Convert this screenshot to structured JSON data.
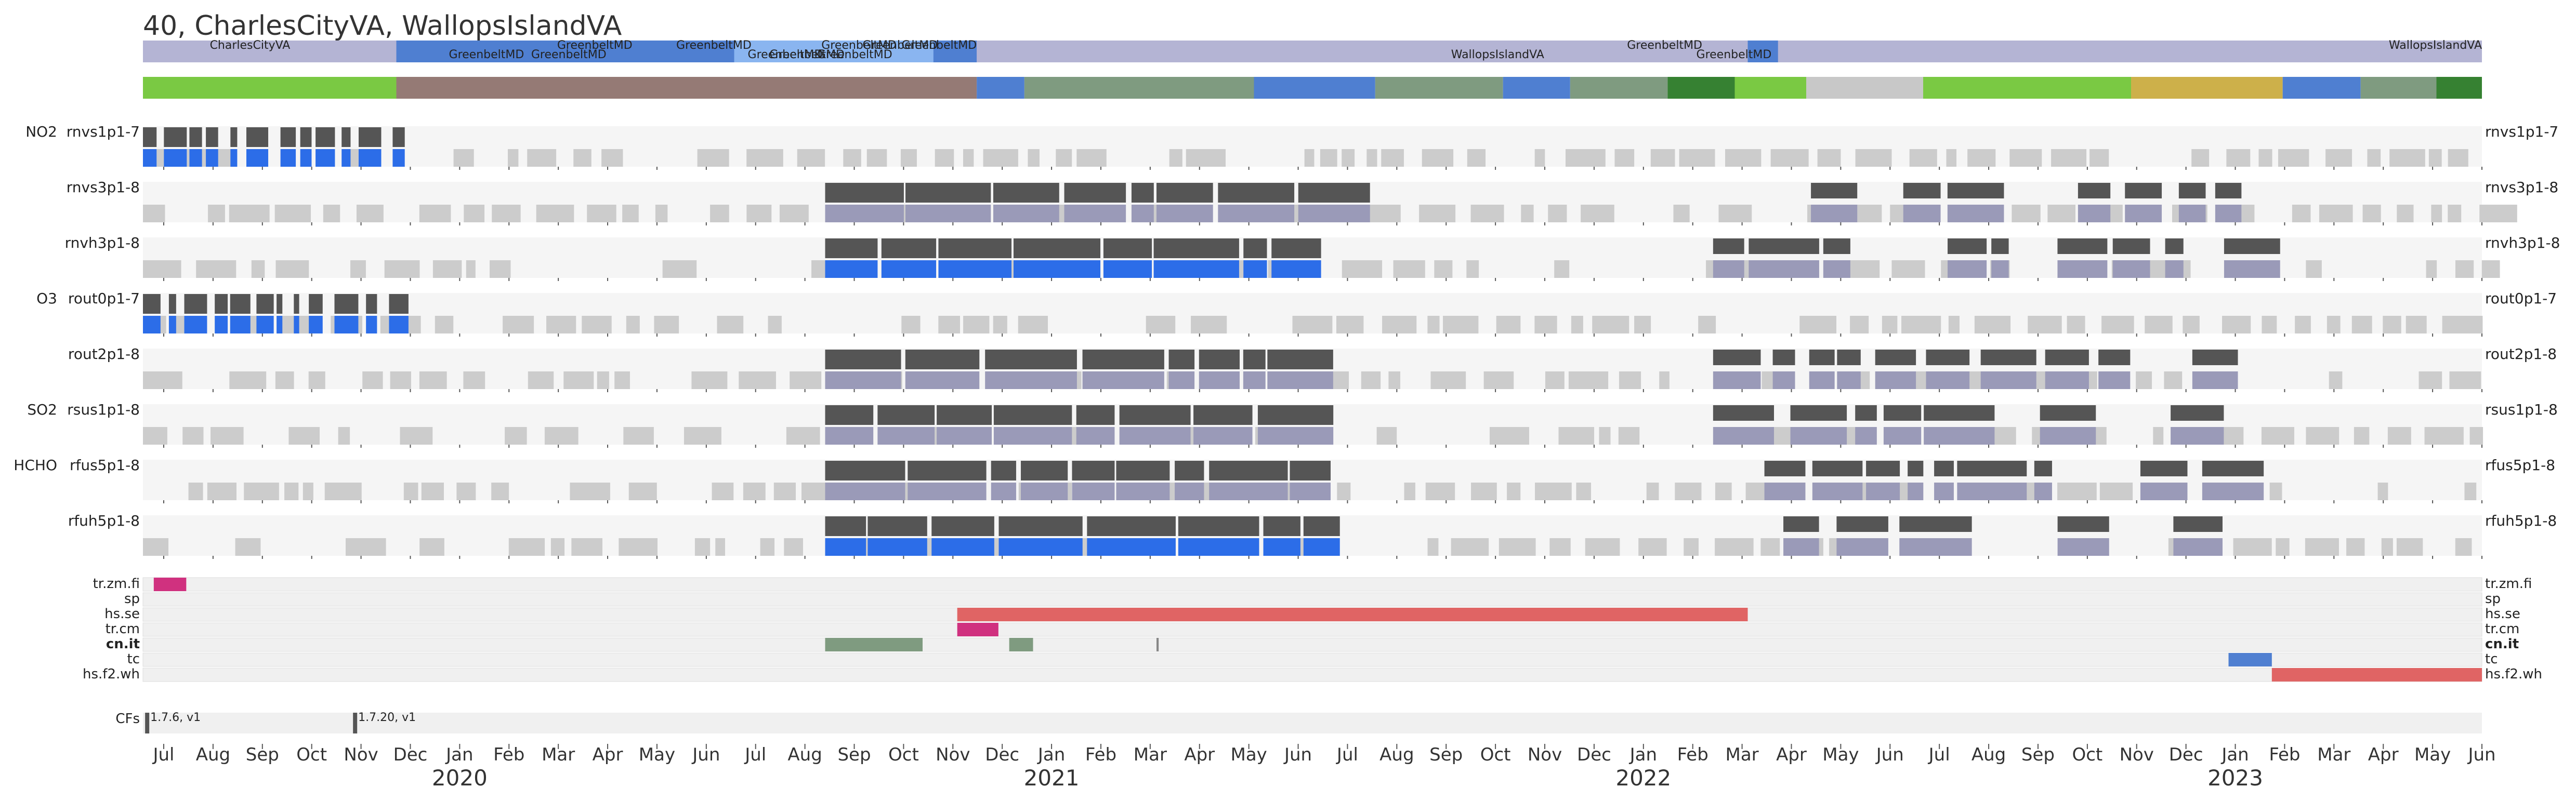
{
  "title": "40, CharlesCityVA, WallopsIslandVA",
  "chart_data": {
    "type": "timeline",
    "title": "40, CharlesCityVA, WallopsIslandVA",
    "time_range": [
      "2020-06-20",
      "2023-06-05"
    ],
    "location_bar": [
      {
        "start": "2020-06-20",
        "end": "2020-10-15",
        "label": "CharlesCityVA",
        "color": "#b4b4d4"
      },
      {
        "start": "2020-10-15",
        "end": "2021-07-10",
        "label": "GreenbeltMD",
        "color": "#4f7fd1"
      },
      {
        "start": "2021-03-20",
        "end": "2021-06-20",
        "label": "GreenbeltMD",
        "color": "#8ab5f0"
      },
      {
        "start": "2021-07-10",
        "end": "2022-07-01",
        "label": "WallopsIslandVA",
        "color": "#b4b4d4"
      },
      {
        "start": "2022-07-01",
        "end": "2022-07-15",
        "label": "GreenbeltMD",
        "color": "#4f7fd1"
      },
      {
        "start": "2022-07-15",
        "end": "2023-06-05",
        "label": "WallopsIslandVA",
        "color": "#b4b4d4"
      }
    ],
    "location_labels": [
      {
        "date": "2020-08-27",
        "text": "CharlesCityVA",
        "row": 0
      },
      {
        "date": "2021-02-01",
        "text": "GreenbeltMD",
        "row": 0
      },
      {
        "date": "2021-03-28",
        "text": "GreenbeltMD",
        "row": 0
      },
      {
        "date": "2021-06-03",
        "text": "GreenbeltMD",
        "row": 0
      },
      {
        "date": "2021-06-22",
        "text": "GreenbeltMD",
        "row": 0
      },
      {
        "date": "2021-07-10",
        "text": "GreenbeltMD",
        "row": 0
      },
      {
        "date": "2022-06-10",
        "text": "GreenbeltMD",
        "row": 0
      },
      {
        "date": "2023-06-05",
        "text": "WallopsIslandVA",
        "row": 0
      },
      {
        "date": "2020-12-13",
        "text": "GreenbeltMD",
        "row": 1
      },
      {
        "date": "2021-01-20",
        "text": "GreenbeltMD",
        "row": 1
      },
      {
        "date": "2021-04-30",
        "text": "GreenbeltMD",
        "row": 1
      },
      {
        "date": "2021-05-10",
        "text": "GreenbeltMD",
        "row": 1
      },
      {
        "date": "2021-06-01",
        "text": "GreenbeltMD",
        "row": 1
      },
      {
        "date": "2022-03-29",
        "text": "WallopsIslandVA",
        "row": 1
      },
      {
        "date": "2022-07-12",
        "text": "GreenbeltMD",
        "row": 1
      }
    ],
    "mode_bar": [
      {
        "start": "2020-06-20",
        "end": "2020-10-15",
        "color": "#7ac943"
      },
      {
        "start": "2020-10-15",
        "end": "2021-07-10",
        "color": "#957a75"
      },
      {
        "start": "2021-07-10",
        "end": "2021-08-01",
        "color": "#4f7fd1"
      },
      {
        "start": "2021-08-01",
        "end": "2021-11-15",
        "color": "#7f9b80"
      },
      {
        "start": "2021-11-15",
        "end": "2022-01-10",
        "color": "#4f7fd1"
      },
      {
        "start": "2022-01-10",
        "end": "2022-03-10",
        "color": "#7f9b80"
      },
      {
        "start": "2022-03-10",
        "end": "2022-04-10",
        "color": "#4f7fd1"
      },
      {
        "start": "2022-04-10",
        "end": "2022-05-25",
        "color": "#7f9b80"
      },
      {
        "start": "2022-05-25",
        "end": "2022-06-25",
        "color": "#368132"
      },
      {
        "start": "2022-06-25",
        "end": "2022-07-28",
        "color": "#7ac943"
      },
      {
        "start": "2022-07-28",
        "end": "2022-09-20",
        "color": "#c8c8c8"
      },
      {
        "start": "2022-09-20",
        "end": "2022-10-02",
        "color": "#7ac943"
      },
      {
        "start": "2022-10-02",
        "end": "2022-12-25",
        "color": "#7ac943"
      },
      {
        "start": "2022-12-25",
        "end": "2023-03-05",
        "color": "#cdb04a"
      },
      {
        "start": "2023-03-05",
        "end": "2023-04-10",
        "color": "#4f7fd1"
      },
      {
        "start": "2023-04-10",
        "end": "2023-05-15",
        "color": "#7f9b80"
      },
      {
        "start": "2023-05-15",
        "end": "2023-06-05",
        "color": "#368132"
      }
    ],
    "species_labels": [
      "NO2",
      "O3",
      "SO2",
      "HCHO"
    ],
    "series": [
      {
        "name": "rnvs1p1-7",
        "species": "NO2"
      },
      {
        "name": "rnvs3p1-8",
        "species": ""
      },
      {
        "name": "rnvh3p1-8",
        "species": ""
      },
      {
        "name": "rout0p1-7",
        "species": "O3"
      },
      {
        "name": "rout2p1-8",
        "species": ""
      },
      {
        "name": "rsus1p1-8",
        "species": "SO2"
      },
      {
        "name": "rfus5p1-8",
        "species": "HCHO"
      },
      {
        "name": "rfuh5p1-8",
        "species": ""
      }
    ],
    "flags": [
      {
        "name": "tr.zm.fi",
        "bold": false,
        "spans": [
          {
            "start": "2020-06-25",
            "end": "2020-07-10",
            "color": "#d0317f"
          }
        ]
      },
      {
        "name": "sp",
        "bold": false,
        "spans": []
      },
      {
        "name": "hs.se",
        "bold": false,
        "spans": [
          {
            "start": "2021-07-01",
            "end": "2022-07-01",
            "color": "#e06464"
          }
        ]
      },
      {
        "name": "tr.cm",
        "bold": false,
        "spans": [
          {
            "start": "2021-07-01",
            "end": "2021-07-20",
            "color": "#d0317f"
          }
        ]
      },
      {
        "name": "cn.it",
        "bold": true,
        "spans": [
          {
            "start": "2021-05-01",
            "end": "2021-06-15",
            "color": "#7f9b80"
          },
          {
            "start": "2021-07-25",
            "end": "2021-08-05",
            "color": "#7f9b80"
          },
          {
            "start": "2021-10-01",
            "end": "2021-10-02",
            "color": "#888888"
          }
        ]
      },
      {
        "name": "tc",
        "bold": false,
        "spans": [
          {
            "start": "2023-02-08",
            "end": "2023-02-28",
            "color": "#4f7fd1"
          }
        ]
      },
      {
        "name": "hs.f2.wh",
        "bold": false,
        "spans": [
          {
            "start": "2023-02-28",
            "end": "2023-06-05",
            "color": "#e06464"
          }
        ]
      }
    ],
    "cfs": [
      {
        "date": "2020-06-21",
        "label": "1.7.6, v1"
      },
      {
        "date": "2020-09-25",
        "label": "1.7.20, v1"
      }
    ],
    "cfs_label": "CFs",
    "months": [
      "Jul",
      "Aug",
      "Sep",
      "Oct",
      "Nov",
      "Dec",
      "Jan",
      "Feb",
      "Mar",
      "Apr",
      "May",
      "Jun",
      "Jul",
      "Aug",
      "Sep",
      "Oct",
      "Nov",
      "Dec",
      "Jan",
      "Feb",
      "Mar",
      "Apr",
      "May",
      "Jun",
      "Jul",
      "Aug",
      "Sep",
      "Oct",
      "Nov",
      "Dec",
      "Jan",
      "Feb",
      "Mar",
      "Apr",
      "May",
      "Jun",
      "Jul",
      "Aug",
      "Sep",
      "Oct",
      "Nov",
      "Dec",
      "Jan",
      "Feb",
      "Mar",
      "Apr",
      "May",
      "Jun"
    ],
    "years": [
      "2020",
      "2021",
      "2022",
      "2023"
    ],
    "colors": {
      "measurement": "#555555",
      "retrieval": "#2c6de8",
      "blocked": "#9a9ab8",
      "no_data": "#cccccc",
      "row_bg": "#f5f5f5"
    }
  }
}
